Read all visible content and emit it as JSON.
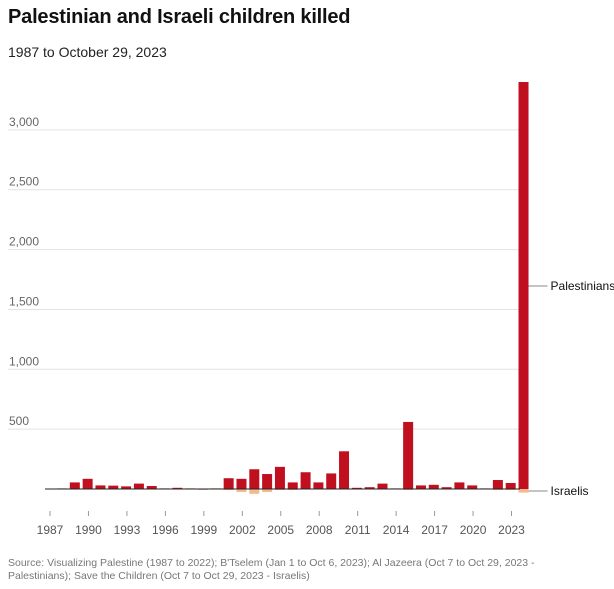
{
  "title": "Palestinian and Israeli children killed",
  "subtitle": "1987 to October 29, 2023",
  "source": "Source: Visualizing Palestine (1987 to 2022); B'Tselem (Jan 1 to Oct 6, 2023); Al Jazeera (Oct 7 to Oct 29, 2023 - Palestinians); Save the Children (Oct 7 to Oct 29, 2023 - Israelis)",
  "chart_data": {
    "type": "bar",
    "categories": [
      "1987",
      "1988",
      "1989",
      "1990",
      "1991",
      "1992",
      "1993",
      "1994",
      "1995",
      "1996",
      "1997",
      "1998",
      "1999",
      "2000",
      "2001",
      "2002",
      "2003",
      "2004",
      "2005",
      "2006",
      "2007",
      "2008",
      "2009",
      "2010",
      "2011",
      "2012",
      "2013",
      "2014",
      "2015",
      "2016",
      "2017",
      "2018",
      "2019",
      "2020",
      "2021",
      "2022",
      "2023"
    ],
    "x_tick_labels": [
      "1987",
      "1990",
      "1993",
      "1996",
      "1999",
      "2002",
      "2005",
      "2008",
      "2011",
      "2014",
      "2017",
      "2020",
      "2023"
    ],
    "series": [
      {
        "name": "Palestinians",
        "color": "#c0101f",
        "values": [
          5,
          55,
          85,
          30,
          28,
          22,
          45,
          25,
          5,
          10,
          5,
          3,
          5,
          90,
          85,
          165,
          125,
          185,
          55,
          140,
          55,
          130,
          315,
          10,
          15,
          45,
          5,
          560,
          30,
          35,
          15,
          55,
          30,
          5,
          75,
          50,
          3400
        ]
      },
      {
        "name": "Israelis",
        "color": "#f4b98c",
        "values": [
          0,
          0,
          0,
          0,
          0,
          0,
          0,
          0,
          0,
          0,
          0,
          0,
          0,
          -5,
          -25,
          -40,
          -25,
          -5,
          -5,
          0,
          0,
          0,
          0,
          0,
          0,
          0,
          0,
          -3,
          0,
          0,
          0,
          0,
          0,
          0,
          -3,
          -3,
          -30
        ]
      }
    ],
    "yticks": [
      500,
      1000,
      1500,
      2000,
      2500,
      3000
    ],
    "ytick_labels": [
      "500",
      "1,000",
      "1,500",
      "2,000",
      "2,500",
      "3,000"
    ],
    "ylim": [
      -80,
      3400
    ],
    "grid": true,
    "legend": "direct labels at right"
  }
}
